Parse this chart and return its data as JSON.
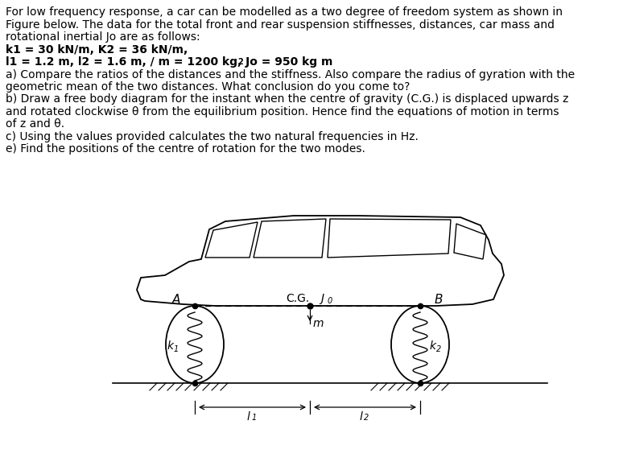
{
  "text_lines_normal": [
    "For low frequency response, a car can be modelled as a two degree of freedom system as shown in",
    "Figure below. The data for the total front and rear suspension stiffnesses, distances, car mass and",
    "rotational inertial Jo are as follows:"
  ],
  "line_k": "k1 = 30 kN/m, K2 = 36 kN/m,",
  "line_l": "l1 = 1.2 m, l2 = 1.6 m, / m = 1200 kg, Jo = 950 kg m",
  "line_a1": "a) Compare the ratios of the distances and the stiffness. Also compare the radius of gyration with the",
  "line_a2": "geometric mean of the two distances. What conclusion do you come to?",
  "line_b1": "b) Draw a free body diagram for the instant when the centre of gravity (C.G.) is displaced upwards z",
  "line_b2": "and rotated clockwise θ from the equilibrium position. Hence find the equations of motion in terms",
  "line_b3": "of z and θ.",
  "line_c": "c) Using the values provided calculates the two natural frequencies in Hz.",
  "line_e": "e) Find the positions of the centre of rotation for the two modes.",
  "bg_color": "#ffffff",
  "text_color": "#000000",
  "dc": "#000000",
  "label_A": "A",
  "label_B": "B",
  "label_CG": "C.G.",
  "label_J0": "J",
  "label_m": "m",
  "label_k1": "k",
  "label_k2": "k",
  "label_l1": "l",
  "label_l2": "l"
}
